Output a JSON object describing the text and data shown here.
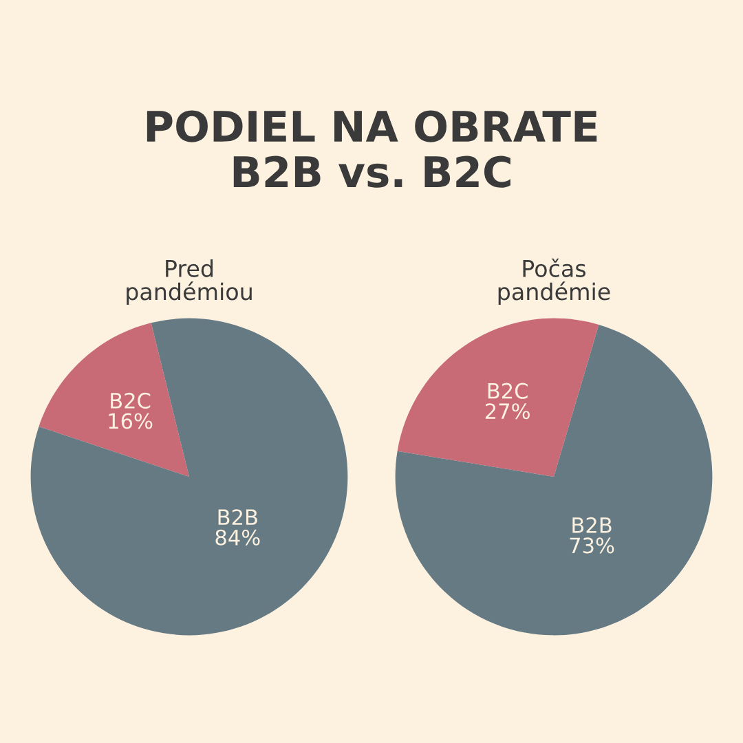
{
  "chart_data": [
    {
      "type": "pie",
      "title": "PODIEL NA OBRATE\nB2B vs. B2C",
      "subtitle": "Pred\npandémiou",
      "categories": [
        "B2C",
        "B2B"
      ],
      "values": [
        16,
        84
      ],
      "colors": [
        "#c96b77",
        "#667a84"
      ],
      "value_labels": [
        "16%",
        "84%"
      ]
    },
    {
      "type": "pie",
      "subtitle": "Počas\npandémie",
      "categories": [
        "B2C",
        "B2B"
      ],
      "values": [
        27,
        73
      ],
      "colors": [
        "#c96b77",
        "#667a84"
      ],
      "value_labels": [
        "27%",
        "73%"
      ]
    }
  ]
}
